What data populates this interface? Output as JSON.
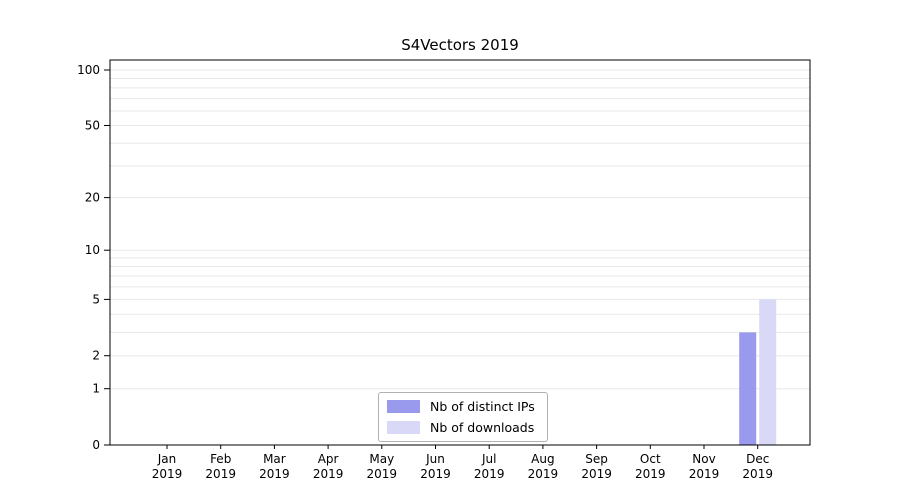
{
  "page": {
    "background": "#ffffff"
  },
  "chart_data": {
    "type": "bar",
    "title": "S4Vectors 2019",
    "categories": [
      "Jan",
      "Feb",
      "Mar",
      "Apr",
      "May",
      "Jun",
      "Jul",
      "Aug",
      "Sep",
      "Oct",
      "Nov",
      "Dec"
    ],
    "category_year": "2019",
    "series": [
      {
        "name": "Nb of distinct IPs",
        "color": "#9999ee",
        "values": [
          0,
          0,
          0,
          0,
          0,
          0,
          0,
          0,
          0,
          0,
          0,
          3
        ]
      },
      {
        "name": "Nb of downloads",
        "color": "#d9d9f7",
        "values": [
          0,
          0,
          0,
          0,
          0,
          0,
          0,
          0,
          0,
          0,
          0,
          5
        ]
      }
    ],
    "y_axis": {
      "scale": "log10(1+x)",
      "ticks": [
        0,
        1,
        2,
        5,
        10,
        20,
        50,
        100
      ],
      "minor_gridlines": [
        1,
        2,
        3,
        4,
        5,
        6,
        7,
        8,
        9,
        10,
        20,
        30,
        40,
        50,
        60,
        70,
        80,
        90,
        100
      ],
      "range": [
        0,
        113
      ]
    },
    "legend": {
      "position": "bottom-center"
    },
    "grid": true,
    "colors": {
      "gridline": "#e8e8e8",
      "axis": "#000000",
      "text": "#000000"
    }
  }
}
